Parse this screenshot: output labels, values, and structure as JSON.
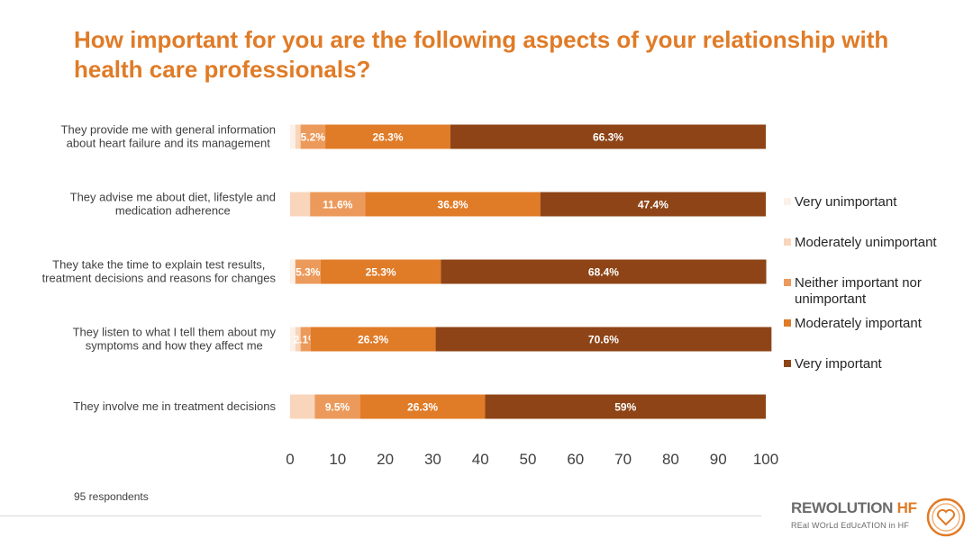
{
  "title": "How important for you are the following aspects of your relationship with health care professionals?",
  "footnote": "95 respondents",
  "logo": {
    "main": "REWOLUTION",
    "main_accent": "HF",
    "sub": "REal WOrLd EdUcATION in HF"
  },
  "colors": {
    "title": "#e07b27",
    "very_unimportant": "#fcf1e8",
    "moderately_unimportant": "#f8d5bb",
    "neither": "#ec9a5b",
    "moderately_important": "#e07b27",
    "very_important": "#8e4416"
  },
  "chart_data": {
    "type": "bar",
    "orientation": "horizontal",
    "stacked": true,
    "categories": [
      "They provide me with general information about heart failure and its management",
      "They advise me about diet, lifestyle and medication adherence",
      "They take the time to explain test results, treatment decisions and reasons for changes",
      "They listen to what I tell them about my symptoms and how they affect me",
      "They involve me in treatment decisions"
    ],
    "series": [
      {
        "name": "Very unimportant",
        "values": [
          1.1,
          0,
          1.1,
          1.1,
          0
        ],
        "labels": [
          "",
          "",
          "",
          "",
          ""
        ]
      },
      {
        "name": "Moderately unimportant",
        "values": [
          1.1,
          4.2,
          0,
          1.1,
          5.2
        ],
        "labels": [
          "",
          "",
          "",
          "",
          ""
        ]
      },
      {
        "name": "Neither important nor unimportant",
        "values": [
          5.2,
          11.6,
          5.3,
          2.1,
          9.5
        ],
        "labels": [
          "5.2%",
          "11.6%",
          "5.3%",
          "2.1%",
          "9.5%"
        ]
      },
      {
        "name": "Moderately important",
        "values": [
          26.3,
          36.8,
          25.3,
          26.3,
          26.3
        ],
        "labels": [
          "26.3%",
          "36.8%",
          "25.3%",
          "26.3%",
          "26.3%"
        ]
      },
      {
        "name": "Very important",
        "values": [
          66.3,
          47.4,
          68.4,
          70.6,
          59
        ],
        "labels": [
          "66.3%",
          "47.4%",
          "68.4%",
          "70.6%",
          "59%"
        ]
      }
    ],
    "xlim": [
      0,
      100
    ],
    "xticks": [
      "0",
      "10",
      "20",
      "30",
      "40",
      "50",
      "60",
      "70",
      "80",
      "90",
      "100"
    ],
    "legend_position": "right",
    "grid": false
  }
}
